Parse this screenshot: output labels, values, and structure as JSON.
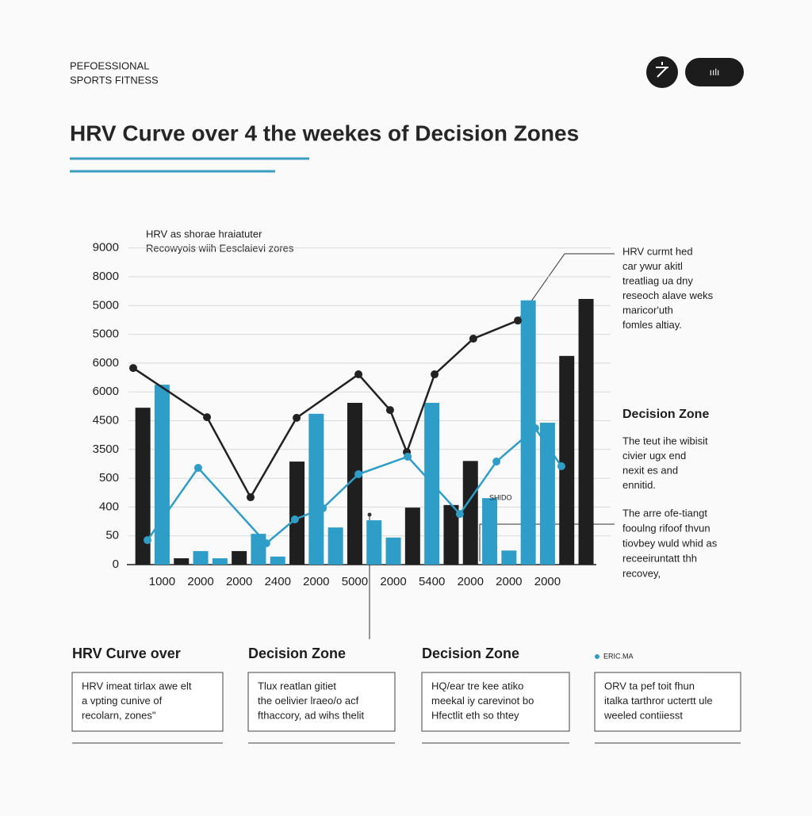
{
  "header": {
    "brand": [
      "PEFOESSIONAL",
      "SPORTS  FITNESS"
    ],
    "button": "ıılı",
    "title": "HRV Curve over 4 the weekes of Decision Zones"
  },
  "chart_data": {
    "type": "bar",
    "subtitle": [
      "HRV as shorae hraiatuter",
      "Recowyois wiih Eesclaievi zores"
    ],
    "categories": [
      null,
      "1000",
      null,
      "2000",
      null,
      "2000",
      null,
      "2400",
      null,
      "2000",
      null,
      "5000",
      null,
      "2000",
      null,
      "5400",
      null,
      "2000",
      null,
      "2000",
      null,
      "2000",
      null,
      null
    ],
    "ylim": [
      0,
      11
    ],
    "yticks": [
      {
        "value": 0,
        "label": "0"
      },
      {
        "value": 1,
        "label": "50"
      },
      {
        "value": 2,
        "label": "400"
      },
      {
        "value": 3,
        "label": "500"
      },
      {
        "value": 4,
        "label": "3500"
      },
      {
        "value": 5,
        "label": "4500"
      },
      {
        "value": 6,
        "label": "6000"
      },
      {
        "value": 7,
        "label": "6000"
      },
      {
        "value": 8,
        "label": "5000"
      },
      {
        "value": 9,
        "label": "5000"
      },
      {
        "value": 10,
        "label": "8000"
      },
      {
        "value": 11,
        "label": "9000"
      }
    ],
    "grid": true,
    "series": [
      {
        "color": "#1f1f1f",
        "values": [
          5.45,
          null,
          0.22,
          null,
          null,
          0.47,
          null,
          null,
          3.58,
          null,
          null,
          5.62,
          null,
          null,
          1.98,
          null,
          2.07,
          3.6,
          null,
          null,
          null,
          null,
          7.25,
          9.23
        ]
      },
      {
        "name": "ERIC.MA",
        "color": "#2e9ec8",
        "values": [
          null,
          6.25,
          null,
          0.47,
          0.22,
          null,
          1.07,
          0.28,
          null,
          5.24,
          1.29,
          null,
          1.54,
          0.94,
          null,
          5.62,
          null,
          null,
          2.31,
          0.49,
          9.18,
          4.93,
          null,
          null
        ]
      }
    ],
    "lines": [
      {
        "type": "line",
        "color": "#222222",
        "x": [
          0,
          3.83,
          6.09,
          8.48,
          11.69,
          13.33,
          14.2,
          15.64,
          17.65,
          19.96
        ],
        "values": [
          6.83,
          5.12,
          2.34,
          5.1,
          6.61,
          5.37,
          3.91,
          6.61,
          7.85,
          8.48
        ]
      },
      {
        "type": "line",
        "color": "#2e9ec8",
        "x": [
          0.74,
          3.37,
          6.91,
          8.39,
          9.84,
          11.69,
          14.24,
          16.95,
          18.85,
          20.86,
          22.22
        ],
        "values": [
          0.85,
          3.36,
          0.74,
          1.57,
          1.96,
          3.14,
          3.75,
          1.76,
          3.58,
          4.74,
          3.42
        ]
      }
    ],
    "marker_label": "SHIDO"
  },
  "annotations": {
    "top": [
      "HRV curmt hed",
      "car ywur akitl",
      "treatliag ua dny",
      "reseoch alave weks",
      "maricor'uth",
      "fomles altiay."
    ],
    "zone_title": "Decision Zone",
    "zone_text": [
      "The teut ihe wibisit",
      "civier ugx end",
      "nexit es and",
      "ennitid."
    ],
    "bottom": [
      "The arre ofe-tiangt",
      "fooulng rifoof thvun",
      "tiovbey wuld whid as",
      "receeiruntatt thh",
      "recovey,"
    ]
  },
  "cards": [
    {
      "title": "HRV Curve over",
      "text": [
        "HRV imeat tirlax awe elt",
        "a vpting cunive of",
        "recolarn, zones\""
      ]
    },
    {
      "title": "Decision Zone",
      "text": [
        "Tlux reatlan gitiet",
        "the oelivier lraeo/o acf",
        "fthaccory, ad wihs thelit"
      ]
    },
    {
      "title": "Decision Zone",
      "text": [
        "HQ/ear tre kee atiko",
        "meekal iy carevinot bo",
        "Hfectlit eth so thtey"
      ]
    },
    {
      "text": [
        "ORV ta pef toit fhun",
        "italka tarthror uctertt ule",
        "weeled contiiesst"
      ]
    }
  ]
}
